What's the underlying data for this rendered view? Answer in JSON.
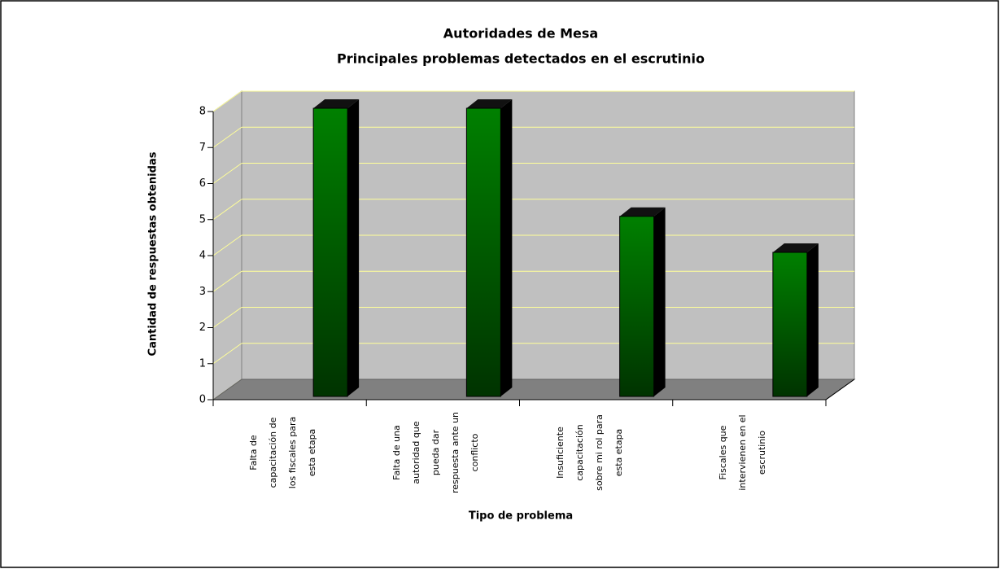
{
  "chart_data": {
    "type": "bar3d",
    "title": "Autoridades de Mesa",
    "subtitle": "Principales problemas detectados en el escrutinio",
    "categories": [
      "Falta de capacitación de los fiscales para esta etapa",
      "Falta de una autoridad que pueda dar respuesta ante un conflicto",
      "Insuficiente capacitación sobre mi rol para esta etapa",
      "Fiscales que intervienen en el escrutinio"
    ],
    "values": [
      8,
      8,
      5,
      4
    ],
    "color": "#008000",
    "ylim": [
      0,
      8
    ],
    "yticks": [
      0,
      1,
      2,
      3,
      4,
      5,
      6,
      7,
      8
    ],
    "grid": true,
    "xlabel": "Tipo de problema",
    "ylabel": "Cantidad de respuestas obtenidas"
  }
}
